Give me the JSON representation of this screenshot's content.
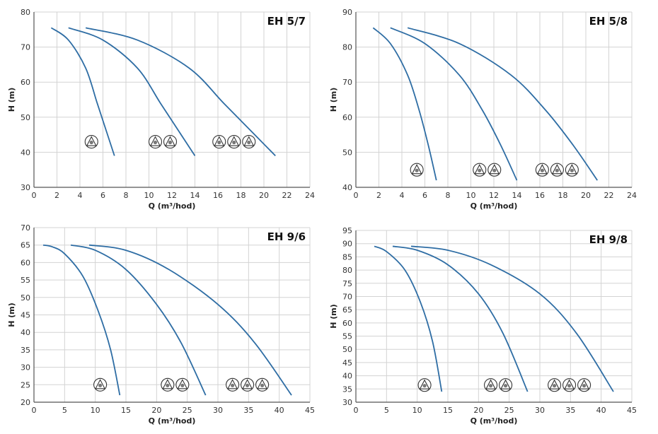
{
  "chart_data": [
    {
      "type": "line",
      "title": "EH 5/7",
      "xlabel": "Q (m³/hod)",
      "ylabel": "H (m)",
      "xlim": [
        0,
        24
      ],
      "ylim": [
        30,
        80
      ],
      "xticks": [
        0,
        2,
        4,
        6,
        8,
        10,
        12,
        14,
        16,
        18,
        20,
        22,
        24
      ],
      "yticks": [
        30,
        40,
        50,
        60,
        70,
        80
      ],
      "grid": true,
      "series": [
        {
          "pumps": 1,
          "points": [
            [
              1.5,
              75.5
            ],
            [
              3,
              72
            ],
            [
              4.5,
              64
            ],
            [
              5.5,
              54
            ],
            [
              6.3,
              46
            ],
            [
              7,
              39
            ]
          ]
        },
        {
          "pumps": 2,
          "points": [
            [
              3,
              75.5
            ],
            [
              6,
              72
            ],
            [
              9,
              64
            ],
            [
              11,
              54
            ],
            [
              12.6,
              46
            ],
            [
              14,
              39
            ]
          ]
        },
        {
          "pumps": 3,
          "points": [
            [
              4.5,
              75.5
            ],
            [
              9,
              72
            ],
            [
              13.5,
              64
            ],
            [
              16.5,
              54
            ],
            [
              18.9,
              46
            ],
            [
              21,
              39
            ]
          ]
        }
      ],
      "markers": [
        {
          "pumps": 1,
          "x": 5,
          "y": 43
        },
        {
          "pumps": 2,
          "x": 11.2,
          "y": 43
        },
        {
          "pumps": 3,
          "x": 17.4,
          "y": 43
        }
      ]
    },
    {
      "type": "line",
      "title": "EH 5/8",
      "xlabel": "Q (m³/hod)",
      "ylabel": "H (m)",
      "xlim": [
        0,
        24
      ],
      "ylim": [
        40,
        90
      ],
      "xticks": [
        0,
        2,
        4,
        6,
        8,
        10,
        12,
        14,
        16,
        18,
        20,
        22,
        24
      ],
      "yticks": [
        40,
        50,
        60,
        70,
        80,
        90
      ],
      "grid": true,
      "series": [
        {
          "pumps": 1,
          "points": [
            [
              1.5,
              85.5
            ],
            [
              3,
              81
            ],
            [
              4.5,
              72
            ],
            [
              5.5,
              62
            ],
            [
              6.3,
              52
            ],
            [
              7,
              42
            ]
          ]
        },
        {
          "pumps": 2,
          "points": [
            [
              3,
              85.5
            ],
            [
              6,
              81
            ],
            [
              9,
              72
            ],
            [
              11,
              62
            ],
            [
              12.6,
              52
            ],
            [
              14,
              42
            ]
          ]
        },
        {
          "pumps": 3,
          "points": [
            [
              4.5,
              85.5
            ],
            [
              9,
              81
            ],
            [
              13.5,
              72
            ],
            [
              16.5,
              62
            ],
            [
              18.9,
              52
            ],
            [
              21,
              42
            ]
          ]
        }
      ],
      "markers": [
        {
          "pumps": 1,
          "x": 5.3,
          "y": 45
        },
        {
          "pumps": 2,
          "x": 11.4,
          "y": 45
        },
        {
          "pumps": 3,
          "x": 17.5,
          "y": 45
        }
      ]
    },
    {
      "type": "line",
      "title": "EH 9/6",
      "xlabel": "Q (m³/hod)",
      "ylabel": "H (m)",
      "xlim": [
        0,
        45
      ],
      "ylim": [
        20,
        70
      ],
      "xticks": [
        0,
        5,
        10,
        15,
        20,
        25,
        30,
        35,
        40,
        45
      ],
      "yticks": [
        20,
        25,
        30,
        35,
        40,
        45,
        50,
        55,
        60,
        65,
        70
      ],
      "grid": true,
      "series": [
        {
          "pumps": 1,
          "points": [
            [
              1.5,
              65
            ],
            [
              3,
              64.5
            ],
            [
              5,
              62.5
            ],
            [
              8,
              56
            ],
            [
              10.5,
              46
            ],
            [
              12.5,
              35
            ],
            [
              14,
              22
            ]
          ]
        },
        {
          "pumps": 2,
          "points": [
            [
              6,
              65
            ],
            [
              10,
              63.5
            ],
            [
              15,
              58
            ],
            [
              20,
              48
            ],
            [
              24,
              37
            ],
            [
              28,
              22
            ]
          ]
        },
        {
          "pumps": 3,
          "points": [
            [
              9,
              65
            ],
            [
              15,
              63.5
            ],
            [
              22,
              58
            ],
            [
              30,
              48
            ],
            [
              36,
              37
            ],
            [
              42,
              22
            ]
          ]
        }
      ],
      "markers": [
        {
          "pumps": 1,
          "x": 10.8,
          "y": 25
        },
        {
          "pumps": 2,
          "x": 23,
          "y": 25
        },
        {
          "pumps": 3,
          "x": 34.8,
          "y": 25
        }
      ]
    },
    {
      "type": "line",
      "title": "EH 9/8",
      "xlabel": "Q (m³/hod)",
      "ylabel": "H (m)",
      "xlim": [
        0,
        45
      ],
      "ylim": [
        30,
        95
      ],
      "xticks": [
        0,
        5,
        10,
        15,
        20,
        25,
        30,
        35,
        40,
        45
      ],
      "yticks": [
        30,
        35,
        40,
        45,
        50,
        55,
        60,
        65,
        70,
        75,
        80,
        85,
        90,
        95
      ],
      "grid": true,
      "series": [
        {
          "pumps": 1,
          "points": [
            [
              3,
              89
            ],
            [
              5,
              87
            ],
            [
              8,
              80
            ],
            [
              10.5,
              68
            ],
            [
              12.5,
              53
            ],
            [
              14,
              34
            ]
          ]
        },
        {
          "pumps": 2,
          "points": [
            [
              6,
              89
            ],
            [
              10,
              87.5
            ],
            [
              15,
              82
            ],
            [
              20,
              71
            ],
            [
              24,
              56
            ],
            [
              28,
              34
            ]
          ]
        },
        {
          "pumps": 3,
          "points": [
            [
              9,
              89
            ],
            [
              15,
              87.5
            ],
            [
              22,
              82
            ],
            [
              30,
              71
            ],
            [
              36,
              56
            ],
            [
              42,
              34
            ]
          ]
        }
      ],
      "markers": [
        {
          "pumps": 1,
          "x": 11.2,
          "y": 36.5
        },
        {
          "pumps": 2,
          "x": 23.2,
          "y": 36.5
        },
        {
          "pumps": 3,
          "x": 34.8,
          "y": 36.5
        }
      ]
    }
  ],
  "colors": {
    "curve": "#2e6da4",
    "grid": "#d3d3d3",
    "axis": "#555555",
    "marker_stroke": "#333333",
    "marker_fill": "#777777"
  }
}
